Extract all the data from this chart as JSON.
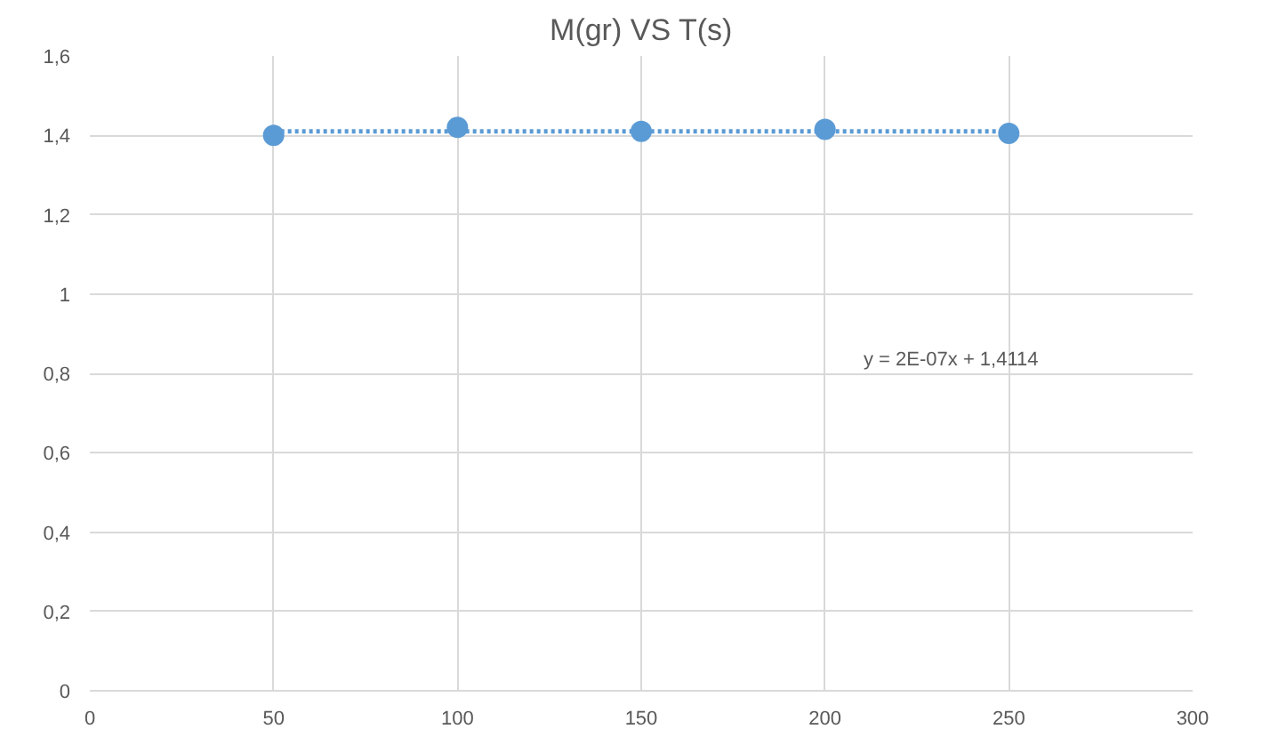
{
  "chart_data": {
    "type": "scatter",
    "title": "M(gr) VS T(s)",
    "series": [
      {
        "color": "#5b9bd5",
        "x": [
          50,
          100,
          150,
          200,
          250
        ],
        "values": [
          1.4,
          1.42,
          1.41,
          1.415,
          1.405
        ],
        "marker": "circle"
      },
      {
        "type": "line",
        "color": "#5b9bd5",
        "x": [
          50,
          250
        ],
        "values": [
          1.41,
          1.41
        ],
        "line_style": "dotted"
      }
    ],
    "xlim": [
      0,
      300
    ],
    "xticks": [
      0,
      50,
      100,
      150,
      200,
      250,
      300
    ],
    "ylim": [
      0,
      1.6
    ],
    "yticks": [
      0,
      {
        "value": 0.2,
        "label": "0,2"
      },
      {
        "value": 0.4,
        "label": "0,4"
      },
      {
        "value": 0.6,
        "label": "0,6"
      },
      {
        "value": 0.8,
        "label": "0,8"
      },
      1,
      {
        "value": 1.2,
        "label": "1,2"
      },
      {
        "value": 1.4,
        "label": "1,4"
      },
      {
        "value": 1.6,
        "label": "1,6"
      }
    ],
    "grid": true,
    "annotations": [
      "y = 2E-07x + 1,4114"
    ]
  }
}
